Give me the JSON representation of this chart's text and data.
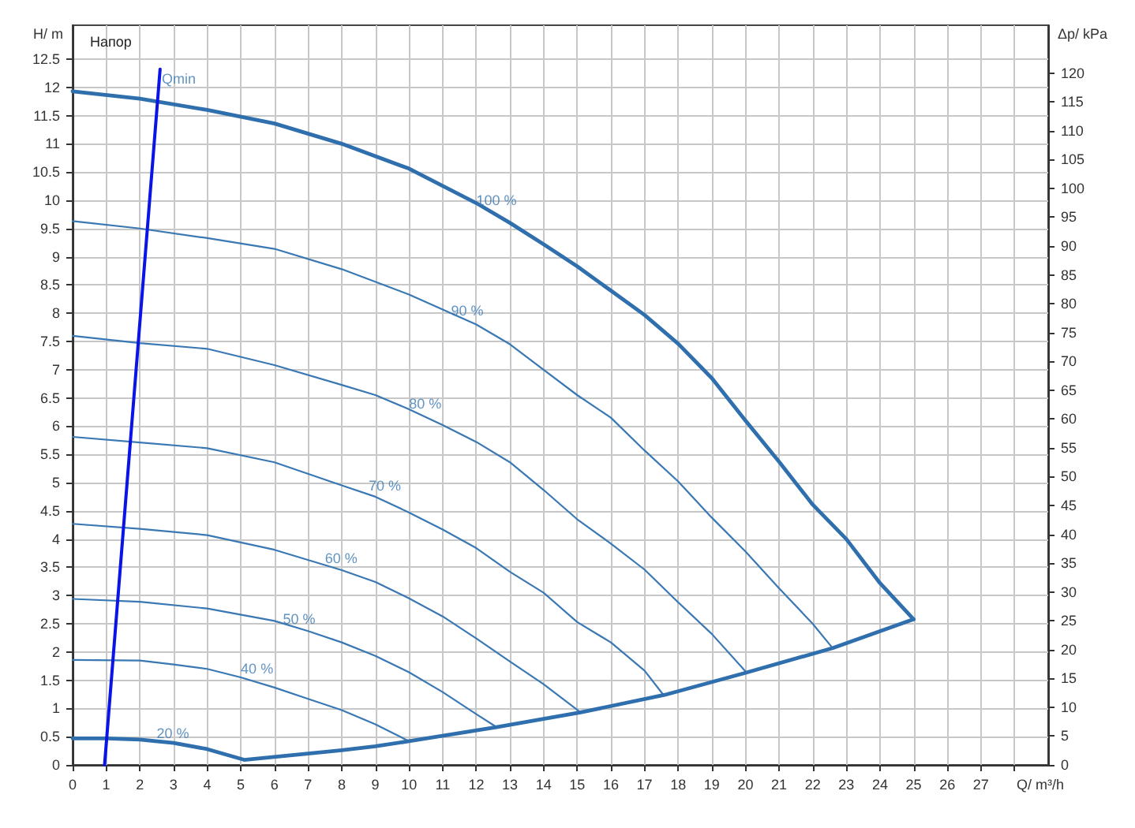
{
  "chart_data": {
    "type": "line",
    "title": "Напор",
    "xlabel": "Q/ m³/h",
    "ylabel": "H/ m",
    "y2label": "Δp/ kPa",
    "xlim": [
      0,
      29
    ],
    "xticks": [
      0,
      1,
      2,
      3,
      4,
      5,
      6,
      7,
      8,
      9,
      10,
      11,
      12,
      13,
      14,
      15,
      16,
      17,
      18,
      19,
      20,
      21,
      22,
      23,
      24,
      25,
      26,
      27,
      {
        "value": 28,
        "label": null
      }
    ],
    "ylim": [
      0,
      13.1
    ],
    "yticks": [
      0,
      0.5,
      1,
      1.5,
      2,
      2.5,
      3,
      3.5,
      4,
      4.5,
      5,
      5.5,
      6,
      6.5,
      7,
      7.5,
      8,
      8.5,
      9,
      9.5,
      10,
      10.5,
      11,
      11.5,
      12,
      12.5
    ],
    "y2lim": [
      0,
      128.3
    ],
    "y2ticks": [
      0,
      5,
      10,
      15,
      20,
      25,
      30,
      35,
      40,
      45,
      50,
      55,
      60,
      65,
      70,
      75,
      80,
      85,
      90,
      95,
      100,
      105,
      110,
      115,
      120
    ],
    "grid": true,
    "marker": "none",
    "line_style": "solid",
    "series": [
      {
        "color": "#2f6fad",
        "x": [
          0,
          2,
          4,
          6,
          8,
          10,
          12,
          13,
          14,
          15,
          16,
          17,
          18,
          19,
          20,
          21,
          22,
          23,
          24,
          25
        ],
        "values": [
          11.93,
          11.8,
          11.6,
          11.36,
          11.0,
          10.56,
          9.95,
          9.6,
          9.22,
          8.83,
          8.4,
          7.97,
          7.46,
          6.85,
          6.1,
          5.37,
          4.61,
          4.0,
          3.22,
          2.58
        ]
      },
      {
        "color": "#3a78b4",
        "x": [
          0,
          2,
          4,
          6,
          8,
          10,
          12,
          13,
          14,
          15,
          16,
          17,
          18,
          19,
          20,
          21,
          22,
          22.55
        ],
        "values": [
          9.63,
          9.5,
          9.33,
          9.14,
          8.78,
          8.33,
          7.8,
          7.45,
          7.0,
          6.55,
          6.15,
          5.57,
          5.02,
          4.38,
          3.78,
          3.13,
          2.5,
          2.1
        ]
      },
      {
        "color": "#3a78b4",
        "x": [
          0,
          2,
          4,
          6,
          8,
          9,
          10,
          11,
          12,
          13,
          14,
          15,
          16,
          17,
          18,
          19,
          20
        ],
        "values": [
          7.6,
          7.47,
          7.37,
          7.08,
          6.73,
          6.55,
          6.3,
          6.02,
          5.72,
          5.36,
          4.87,
          4.35,
          3.92,
          3.46,
          2.88,
          2.32,
          1.66
        ]
      },
      {
        "color": "#3a78b4",
        "x": [
          0,
          2,
          4,
          6,
          8,
          9,
          10,
          11,
          12,
          13,
          14,
          15,
          16,
          17,
          17.55
        ],
        "values": [
          5.81,
          5.71,
          5.61,
          5.36,
          4.95,
          4.75,
          4.47,
          4.17,
          3.84,
          3.42,
          3.05,
          2.53,
          2.17,
          1.67,
          1.25
        ]
      },
      {
        "color": "#3a78b4",
        "x": [
          0,
          2,
          4,
          6,
          8,
          9,
          10,
          11,
          12,
          13,
          14,
          15.1
        ],
        "values": [
          4.27,
          4.18,
          4.07,
          3.81,
          3.45,
          3.24,
          2.95,
          2.63,
          2.24,
          1.83,
          1.43,
          0.93
        ]
      },
      {
        "color": "#3a78b4",
        "x": [
          0,
          2,
          4,
          6,
          7,
          8,
          9,
          10,
          11,
          12,
          12.6
        ],
        "values": [
          2.94,
          2.89,
          2.77,
          2.55,
          2.37,
          2.17,
          1.93,
          1.64,
          1.29,
          0.9,
          0.67
        ]
      },
      {
        "color": "#3a78b4",
        "x": [
          0,
          2,
          3,
          4,
          5,
          6,
          7,
          8,
          9,
          10
        ],
        "values": [
          1.86,
          1.85,
          1.78,
          1.7,
          1.55,
          1.37,
          1.17,
          0.97,
          0.72,
          0.42
        ]
      },
      {
        "color": "#2f6fad",
        "x": [
          0,
          1,
          2,
          3,
          4,
          5.1,
          7,
          8,
          9,
          10,
          12.6,
          15.1,
          17.6,
          20,
          22.6,
          25
        ],
        "values": [
          0.47,
          0.47,
          0.45,
          0.39,
          0.28,
          0.09,
          0.2,
          0.26,
          0.33,
          0.42,
          0.67,
          0.93,
          1.24,
          1.63,
          2.07,
          2.58
        ]
      },
      {
        "color": "#0a14e6",
        "x": [
          0.95,
          2.6
        ],
        "values": [
          0,
          12.32
        ]
      }
    ],
    "annotations": [
      {
        "text": "100 %",
        "x": 12.0,
        "y": 10.0
      },
      {
        "text": "90 %",
        "x": 11.25,
        "y": 8.04
      },
      {
        "text": "80 %",
        "x": 10.0,
        "y": 6.4
      },
      {
        "text": "70 %",
        "x": 8.8,
        "y": 4.95
      },
      {
        "text": "60 %",
        "x": 7.5,
        "y": 3.66
      },
      {
        "text": "50 %",
        "x": 6.25,
        "y": 2.58
      },
      {
        "text": "40 %",
        "x": 5.0,
        "y": 1.7
      },
      {
        "text": "20 %",
        "x": 2.5,
        "y": 0.56
      },
      {
        "text": "Qmin",
        "x": 2.65,
        "y": 12.15
      }
    ]
  }
}
